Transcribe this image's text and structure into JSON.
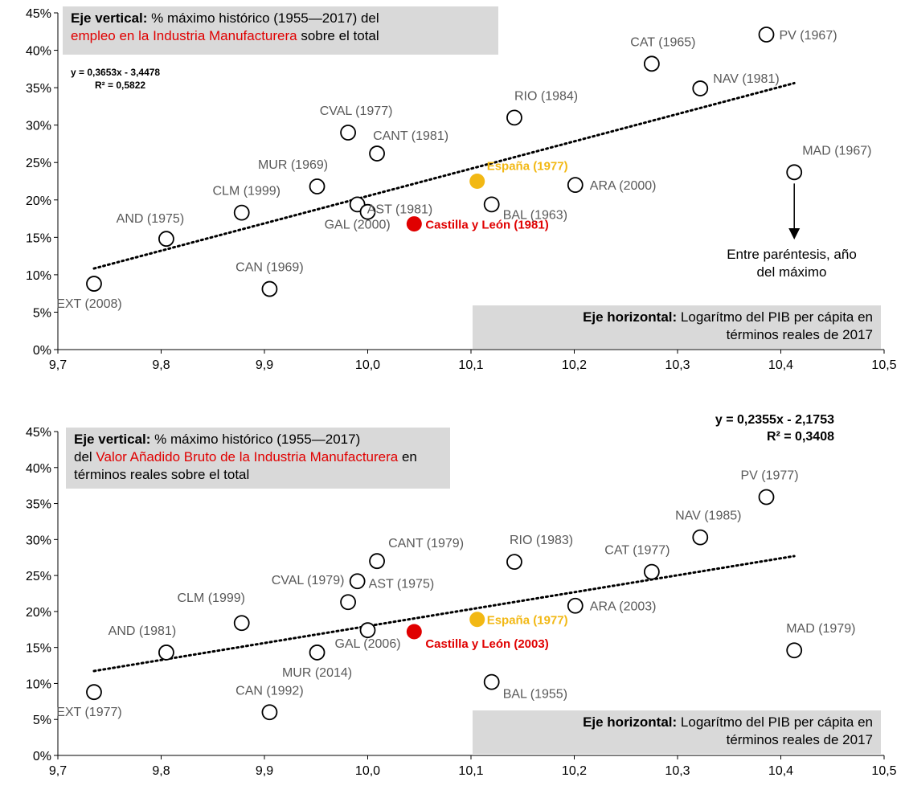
{
  "charts": [
    {
      "vnote": {
        "bold": "Eje vertical:",
        "text1": " % máximo histórico (1955—2017) del",
        "red": "empleo en la Industria Manufacturera",
        "text2": " sobre el total"
      },
      "hnote": {
        "bold": "Eje horizontal:",
        "text1": " Logarítmo del PIB per cápita en",
        "text2": "términos reales de 2017"
      },
      "equation": {
        "line1": "y = 0,3653x - 3,4478",
        "line2": "R² = 0,5822"
      },
      "side_note": {
        "line1": "Entre paréntesis, año",
        "line2": "del máximo"
      }
    },
    {
      "vnote": {
        "bold": "Eje vertical:",
        "text1": " % máximo histórico (1955—2017)",
        "text1b": "del ",
        "red": "Valor Añadido Bruto de la Industria Manufacturera",
        "text2": " en términos reales sobre el total"
      },
      "hnote": {
        "bold": "Eje horizontal:",
        "text1": " Logarítmo del PIB per cápita en",
        "text2": "términos reales de 2017"
      },
      "equation": {
        "line1": "y = 0,2355x - 2,1753",
        "line2": "R² = 0,3408"
      }
    }
  ],
  "chart_data": [
    {
      "type": "scatter",
      "xlim": [
        9.7,
        10.5
      ],
      "ylim": [
        0,
        45
      ],
      "x_ticks": [
        "9,7",
        "9,8",
        "9,9",
        "10,0",
        "10,1",
        "10,2",
        "10,3",
        "10,4",
        "10,5"
      ],
      "y_ticks": [
        "0%",
        "5%",
        "10%",
        "15%",
        "20%",
        "25%",
        "30%",
        "35%",
        "40%",
        "45%"
      ],
      "colors": {
        "default": "#ffffff",
        "espana": "#f2b814",
        "cyl": "#e00000",
        "trend": "#000000"
      },
      "trendline": {
        "slope": 0.3653,
        "intercept": -3.4478,
        "x_range": [
          9.735,
          10.413
        ]
      },
      "points": [
        {
          "label": "EXT (2008)",
          "x": 9.735,
          "y": 8.8
        },
        {
          "label": "AND (1975)",
          "x": 9.805,
          "y": 14.8
        },
        {
          "label": "CLM (1999)",
          "x": 9.878,
          "y": 18.3
        },
        {
          "label": "CAN (1969)",
          "x": 9.905,
          "y": 8.1
        },
        {
          "label": "MUR (1969)",
          "x": 9.951,
          "y": 21.8
        },
        {
          "label": "CVAL (1977)",
          "x": 9.981,
          "y": 29.0
        },
        {
          "label": "GAL (2000)",
          "x": 9.99,
          "y": 19.4
        },
        {
          "label": "AST (1981)",
          "x": 10.0,
          "y": 18.4
        },
        {
          "label": "CANT (1981)",
          "x": 10.009,
          "y": 26.2
        },
        {
          "label": "Castilla y León (1981)",
          "x": 10.045,
          "y": 16.8,
          "style": "cyl"
        },
        {
          "label": "España (1977)",
          "x": 10.106,
          "y": 22.5,
          "style": "espana"
        },
        {
          "label": "BAL (1963)",
          "x": 10.12,
          "y": 19.4
        },
        {
          "label": "RIO (1984)",
          "x": 10.142,
          "y": 31.0
        },
        {
          "label": "ARA (2000)",
          "x": 10.201,
          "y": 22.0
        },
        {
          "label": "CAT (1965)",
          "x": 10.275,
          "y": 38.2
        },
        {
          "label": "NAV (1981)",
          "x": 10.322,
          "y": 34.9
        },
        {
          "label": "PV (1967)",
          "x": 10.386,
          "y": 42.1
        },
        {
          "label": "MAD (1967)",
          "x": 10.413,
          "y": 23.7
        }
      ]
    },
    {
      "type": "scatter",
      "xlim": [
        9.7,
        10.5
      ],
      "ylim": [
        0,
        45
      ],
      "x_ticks": [
        "9,7",
        "9,8",
        "9,9",
        "10,0",
        "10,1",
        "10,2",
        "10,3",
        "10,4",
        "10,5"
      ],
      "y_ticks": [
        "0%",
        "5%",
        "10%",
        "15%",
        "20%",
        "25%",
        "30%",
        "35%",
        "40%",
        "45%"
      ],
      "colors": {
        "default": "#ffffff",
        "espana": "#f2b814",
        "cyl": "#e00000",
        "trend": "#000000"
      },
      "trendline": {
        "slope": 0.2355,
        "intercept": -2.1753,
        "x_range": [
          9.735,
          10.413
        ]
      },
      "points": [
        {
          "label": "EXT (1977)",
          "x": 9.735,
          "y": 8.8
        },
        {
          "label": "AND (1981)",
          "x": 9.805,
          "y": 14.3
        },
        {
          "label": "CLM (1999)",
          "x": 9.878,
          "y": 18.4
        },
        {
          "label": "CAN (1992)",
          "x": 9.905,
          "y": 6.0
        },
        {
          "label": "MUR (2014)",
          "x": 9.951,
          "y": 14.3
        },
        {
          "label": "CVAL (1979)",
          "x": 9.981,
          "y": 21.3
        },
        {
          "label": "AST (1975)",
          "x": 9.99,
          "y": 24.2
        },
        {
          "label": "GAL (2006)",
          "x": 10.0,
          "y": 17.4
        },
        {
          "label": "CANT (1979)",
          "x": 10.009,
          "y": 27.0
        },
        {
          "label": "Castilla y León (2003)",
          "x": 10.045,
          "y": 17.2,
          "style": "cyl"
        },
        {
          "label": "España (1977)",
          "x": 10.106,
          "y": 18.9,
          "style": "espana"
        },
        {
          "label": "BAL (1955)",
          "x": 10.12,
          "y": 10.2
        },
        {
          "label": "RIO (1983)",
          "x": 10.142,
          "y": 26.9
        },
        {
          "label": "ARA (2003)",
          "x": 10.201,
          "y": 20.8
        },
        {
          "label": "CAT (1977)",
          "x": 10.275,
          "y": 25.5
        },
        {
          "label": "NAV (1985)",
          "x": 10.322,
          "y": 30.3
        },
        {
          "label": "PV (1977)",
          "x": 10.386,
          "y": 35.9
        },
        {
          "label": "MAD (1979)",
          "x": 10.413,
          "y": 14.6
        }
      ]
    }
  ]
}
